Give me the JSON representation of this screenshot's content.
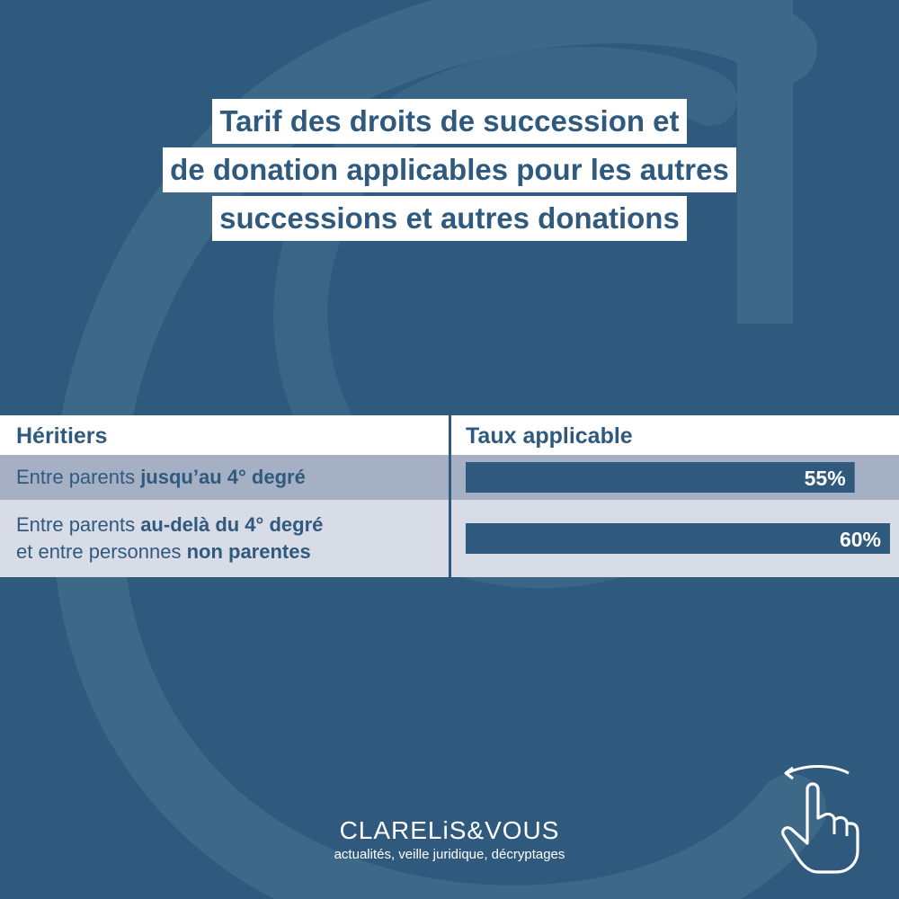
{
  "title": {
    "lines": [
      "Tarif des droits de succession et",
      "de donation applicables pour les autres",
      "successions et autres donations"
    ]
  },
  "colors": {
    "background": "#2f5a7e",
    "bar": "#2f5a7e",
    "row_dark": "#a6b0c4",
    "row_light": "#d8dce6",
    "text_on_white": "#2f5a7e"
  },
  "table": {
    "headers": [
      "Héritiers",
      "Taux applicable"
    ],
    "rows": [
      {
        "parts": [
          {
            "text": "Entre parents ",
            "bold": false
          },
          {
            "text": "jusqu’au 4° degré",
            "bold": true
          }
        ],
        "parts2": []
      },
      {
        "parts": [
          {
            "text": "Entre parents ",
            "bold": false
          },
          {
            "text": "au-delà du 4° degré",
            "bold": true
          }
        ],
        "parts2": [
          {
            "text": "et entre personnes ",
            "bold": false
          },
          {
            "text": "non parentes",
            "bold": true
          }
        ]
      }
    ]
  },
  "chart_data": {
    "type": "bar",
    "orientation": "horizontal",
    "categories": [
      "Entre parents jusqu’au 4° degré",
      "Entre parents au-delà du 4° degré et entre personnes non parentes"
    ],
    "values": [
      55,
      60
    ],
    "value_labels": [
      "55%",
      "60%"
    ],
    "title": "Tarif des droits de succession et de donation applicables pour les autres successions et autres donations",
    "xlabel": "",
    "ylabel": ""
  },
  "brand": {
    "name": "CLARELiS&VOUS",
    "tagline": "actualités, veille juridique, décryptages"
  },
  "icons": [
    "watermark-c-logo",
    "swipe-hand-icon"
  ]
}
